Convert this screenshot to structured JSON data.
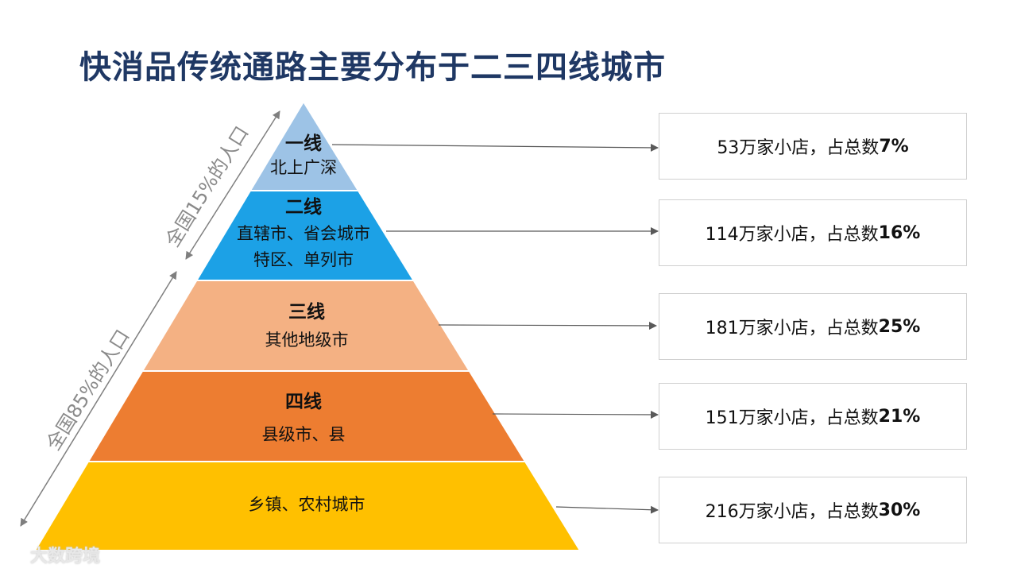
{
  "title": "快消品传统通路主要分布于二三四线城市",
  "side_labels": {
    "upper": "全国15%的人口",
    "lower": "全国85%的人口"
  },
  "tiers": [
    {
      "name": "一线",
      "desc": [
        "北上广深"
      ],
      "color": "#9dc3e6",
      "stores": "53万家小店，占总数",
      "share": "7%"
    },
    {
      "name": "二线",
      "desc": [
        "直辖市、省会城市",
        "特区、单列市"
      ],
      "color": "#1ca1e6",
      "stores": "114万家小店，占总数",
      "share": "16%"
    },
    {
      "name": "三线",
      "desc": [
        "其他地级市"
      ],
      "color": "#f4b183",
      "stores": "181万家小店，占总数",
      "share": "25%"
    },
    {
      "name": "四线",
      "desc": [
        "县级市、县"
      ],
      "color": "#ed7d31",
      "stores": "151万家小店，占总数",
      "share": "21%"
    },
    {
      "name": "",
      "desc": [
        "乡镇、农村城市"
      ],
      "color": "#ffc000",
      "stores": "216万家小店，占总数",
      "share": "30%"
    }
  ],
  "watermark": "大数跨境"
}
